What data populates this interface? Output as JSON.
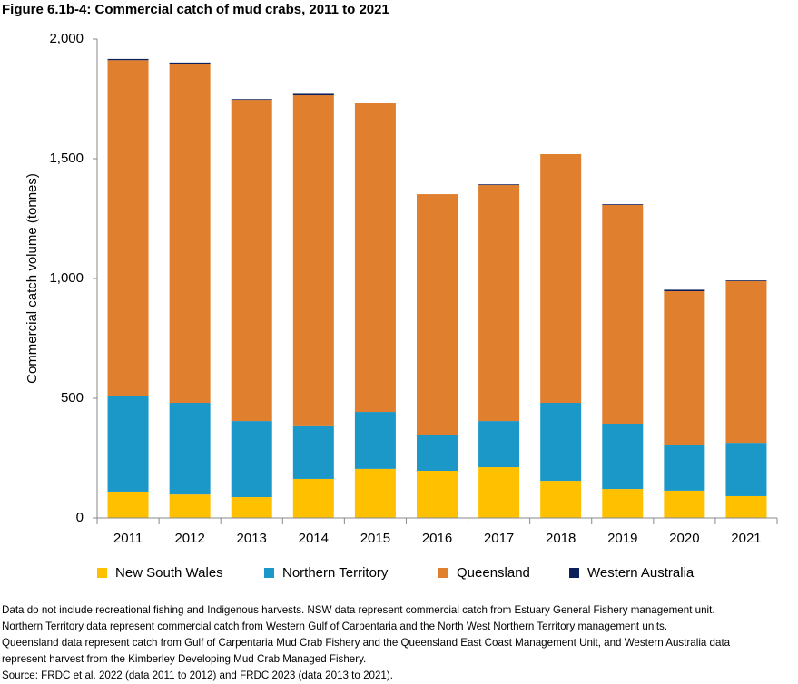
{
  "chart_data": {
    "type": "stacked-bar",
    "title": "Figure 6.1b-4: Commercial catch of mud crabs, 2011 to 2021",
    "y_label": "Commercial catch volume (tonnes)",
    "categories": [
      "2011",
      "2012",
      "2013",
      "2014",
      "2015",
      "2016",
      "2017",
      "2018",
      "2019",
      "2020",
      "2021"
    ],
    "series": [
      {
        "name": "New South Wales",
        "color": "#ffc000",
        "values": [
          110,
          98,
          87,
          163,
          205,
          197,
          212,
          155,
          121,
          114,
          91
        ]
      },
      {
        "name": "Northern Territory",
        "color": "#1b98c8",
        "values": [
          400,
          383,
          318,
          220,
          238,
          151,
          193,
          326,
          273,
          189,
          223
        ]
      },
      {
        "name": "Queensland",
        "color": "#e07f2e",
        "values": [
          1402,
          1413,
          1341,
          1382,
          1288,
          1004,
          985,
          1038,
          913,
          644,
          675
        ]
      },
      {
        "name": "Western Australia",
        "color": "#0c1f5a",
        "values": [
          5,
          8,
          3,
          6,
          0,
          0,
          3,
          0,
          3,
          6,
          3
        ]
      }
    ],
    "ylim": [
      0,
      2000
    ],
    "yticks": [
      0,
      500,
      {
        "value": 1000,
        "label": "1,000"
      },
      {
        "value": 1500,
        "label": "1,500"
      },
      {
        "value": 2000,
        "label": "2,000"
      }
    ],
    "legend": "bottom",
    "notes": [
      "Data do not include recreational fishing and Indigenous harvests. NSW data represent commercial catch from Estuary General Fishery management unit.",
      "Northern Territory data represent commercial catch from Western Gulf of Carpentaria and the North West Northern Territory management units.",
      "Queensland data represent catch from Gulf of Carpentaria Mud Crab Fishery and the Queensland East Coast Management Unit, and Western Australia data",
      "represent harvest from the Kimberley Developing Mud Crab Managed Fishery.",
      "Source: FRDC et al. 2022 (data 2011 to 2012) and FRDC 2023 (data 2013 to 2021)."
    ]
  }
}
